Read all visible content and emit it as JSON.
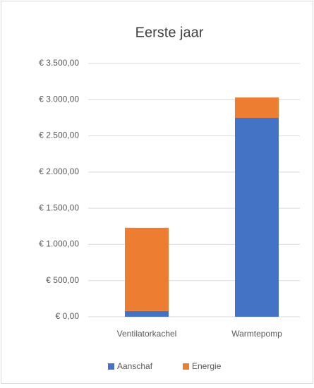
{
  "chart_data": {
    "type": "stacked_bar",
    "title": "Eerste jaar",
    "categories": [
      "Ventilatorkachel",
      "Warmtepomp"
    ],
    "series": [
      {
        "name": "Aanschaf",
        "color": "#4472c4",
        "values": [
          80,
          2750
        ]
      },
      {
        "name": "Energie",
        "color": "#ed7d31",
        "values": [
          1150,
          280
        ]
      }
    ],
    "ylim": [
      0,
      3500
    ],
    "yticks": [
      {
        "value": 0,
        "label": "€ 0,00"
      },
      {
        "value": 500,
        "label": "€ 500,00"
      },
      {
        "value": 1000,
        "label": "€ 1.000,00"
      },
      {
        "value": 1500,
        "label": "€ 1.500,00"
      },
      {
        "value": 2000,
        "label": "€ 2.000,00"
      },
      {
        "value": 2500,
        "label": "€ 2.500,00"
      },
      {
        "value": 3000,
        "label": "€ 3.000,00"
      },
      {
        "value": 3500,
        "label": "€ 3.500,00"
      }
    ],
    "grid": true,
    "legend": "bottom"
  }
}
